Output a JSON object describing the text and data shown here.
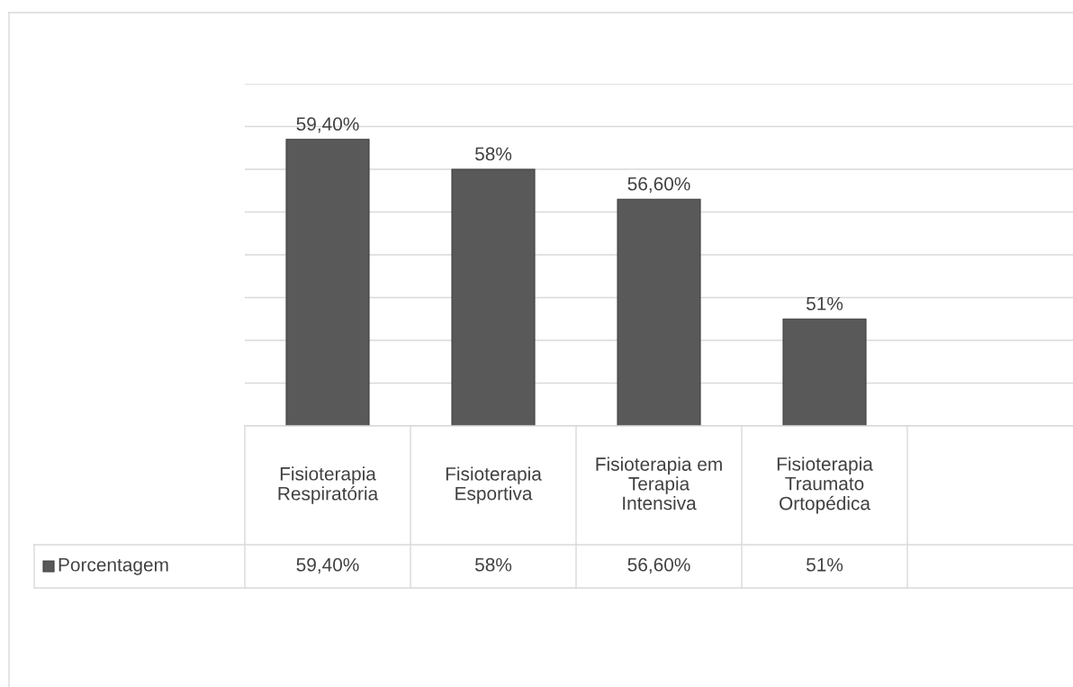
{
  "chart_data": {
    "type": "bar",
    "categories": [
      "Fisioterapia\nRespiratória",
      "Fisioterapia\nEsportiva",
      "Fisioterapia em\nTerapia\nIntensiva",
      "Fisioterapia\nTraumato\nOrtopédica",
      null
    ],
    "series": [
      {
        "name": "Porcentagem",
        "color": "#595959",
        "values": [
          59.4,
          58,
          56.6,
          51,
          null
        ],
        "value_labels": [
          "59,40%",
          "58%",
          "56,60%",
          "51%",
          null
        ]
      }
    ],
    "ylim": [
      46,
      62
    ],
    "yticks": [
      {
        "value": 46,
        "label": null
      },
      {
        "value": 48,
        "label": null
      },
      {
        "value": 50,
        "label": null
      },
      {
        "value": 52,
        "label": null
      },
      {
        "value": 54,
        "label": null
      },
      {
        "value": 56,
        "label": null
      },
      {
        "value": 58,
        "label": null
      },
      {
        "value": 60,
        "label": null
      },
      {
        "value": 62,
        "label": null
      }
    ],
    "grid": "y",
    "legend": "bottom left"
  }
}
